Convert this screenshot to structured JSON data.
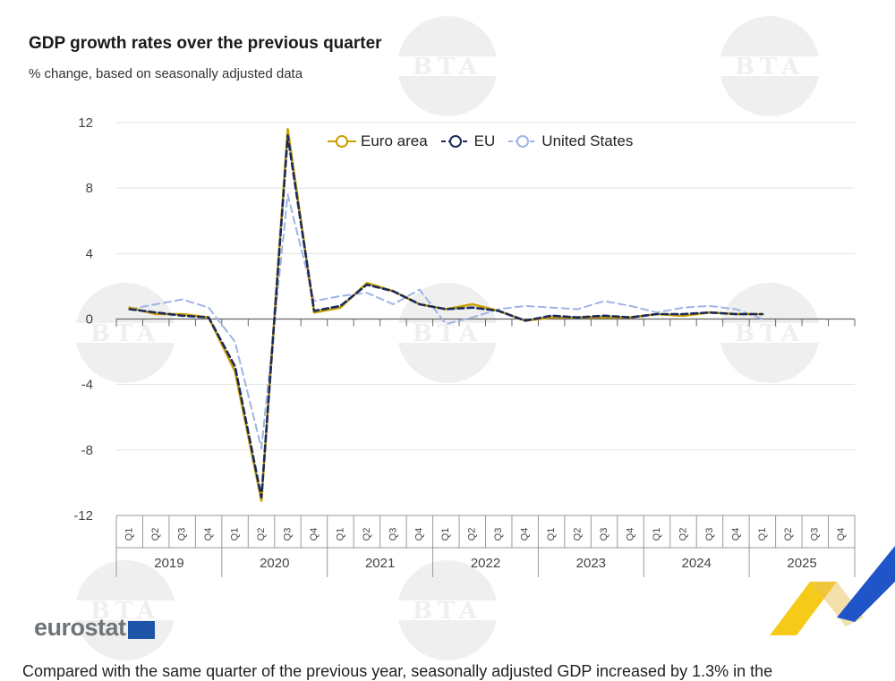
{
  "chart_data": {
    "type": "line",
    "title": "GDP growth rates over the previous quarter",
    "subtitle": "% change, based on seasonally adjusted data",
    "ylim": [
      -12,
      12
    ],
    "yticks": [
      12,
      8,
      4,
      0,
      -4,
      -8,
      -12
    ],
    "ytick_labels": [
      "12",
      "8",
      "4",
      "0",
      "-4",
      "-8",
      "-12"
    ],
    "years": [
      "2019",
      "2020",
      "2021",
      "2022",
      "2023",
      "2024",
      "2025"
    ],
    "quarter_labels": [
      "Q1",
      "Q2",
      "Q3",
      "Q4"
    ],
    "legend_position": "top",
    "grid": true,
    "series": [
      {
        "name": "Euro area",
        "color": "#c9a000",
        "dash": "solid",
        "values": [
          0.7,
          0.3,
          0.3,
          0.1,
          -3.2,
          -11.1,
          11.6,
          0.4,
          0.7,
          2.2,
          1.7,
          0.9,
          0.6,
          0.9,
          0.5,
          -0.1,
          0.1,
          0.1,
          0.1,
          0.1,
          0.3,
          0.2,
          0.4,
          0.3,
          0.3
        ]
      },
      {
        "name": "EU",
        "color": "#1b2a5c",
        "dash": "dashed",
        "values": [
          0.6,
          0.4,
          0.2,
          0.1,
          -2.9,
          -10.9,
          11.2,
          0.5,
          0.8,
          2.1,
          1.7,
          0.9,
          0.6,
          0.7,
          0.5,
          -0.1,
          0.2,
          0.1,
          0.2,
          0.1,
          0.3,
          0.3,
          0.4,
          0.3,
          0.3
        ]
      },
      {
        "name": "United States",
        "color": "#9fb4e4",
        "dash": "dashed",
        "values": [
          0.6,
          0.9,
          1.2,
          0.7,
          -1.4,
          -7.9,
          7.6,
          1.1,
          1.4,
          1.6,
          0.9,
          1.8,
          -0.3,
          0.1,
          0.6,
          0.8,
          0.7,
          0.6,
          1.1,
          0.8,
          0.4,
          0.7,
          0.8,
          0.6,
          0.0
        ]
      }
    ]
  },
  "source": {
    "logo_text": "eurostat",
    "caption": "Compared with the same quarter of the previous year, seasonally adjusted GDP increased by 1.3% in the"
  },
  "watermark": {
    "text": "BTA"
  }
}
